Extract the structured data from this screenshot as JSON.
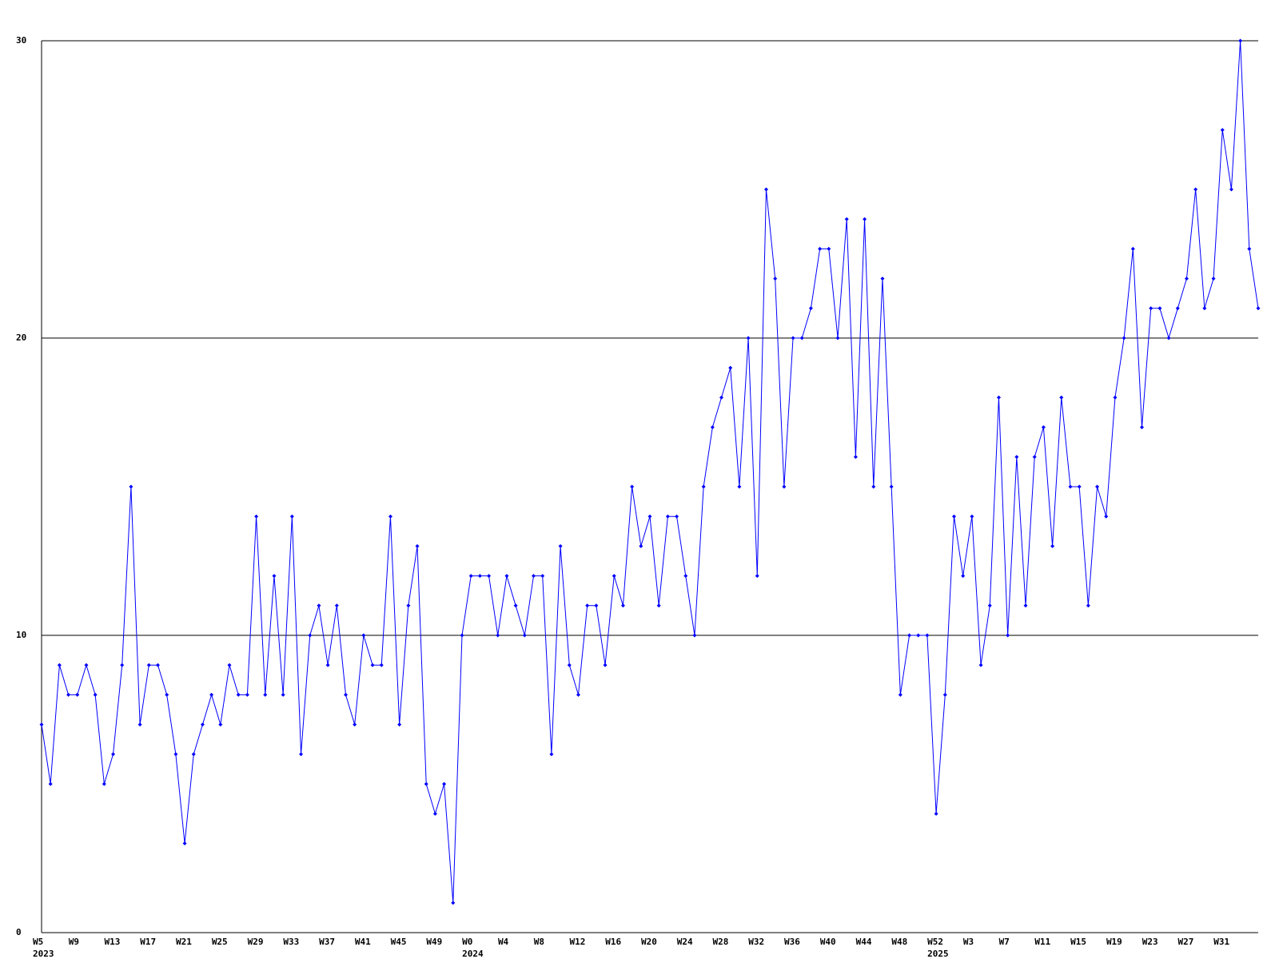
{
  "chart_data": {
    "type": "line",
    "color": "#0000ff",
    "categories": [
      "W5",
      null,
      null,
      null,
      "W9",
      null,
      null,
      null,
      "W13",
      null,
      null,
      null,
      "W17",
      null,
      null,
      null,
      "W21",
      null,
      null,
      null,
      "W25",
      null,
      null,
      null,
      "W29",
      null,
      null,
      null,
      "W33",
      null,
      null,
      null,
      "W37",
      null,
      null,
      null,
      "W41",
      null,
      null,
      null,
      "W45",
      null,
      null,
      null,
      "W49",
      null,
      null,
      null,
      "W0",
      null,
      null,
      null,
      "W4",
      null,
      null,
      null,
      "W8",
      null,
      null,
      null,
      "W12",
      null,
      null,
      null,
      "W16",
      null,
      null,
      null,
      "W20",
      null,
      null,
      null,
      "W24",
      null,
      null,
      null,
      "W28",
      null,
      null,
      null,
      "W32",
      null,
      null,
      null,
      "W36",
      null,
      null,
      null,
      "W40",
      null,
      null,
      null,
      "W44",
      null,
      null,
      null,
      "W48",
      null,
      null,
      null,
      "W52",
      null,
      null,
      null,
      "W3",
      null,
      null,
      null,
      "W7",
      null,
      null,
      null,
      "W11",
      null,
      null,
      null,
      "W15",
      null,
      null,
      null,
      "W19",
      null,
      null,
      null,
      "W23",
      null,
      null,
      null,
      "W27",
      null,
      null,
      null,
      "W31",
      null,
      null,
      null,
      null
    ],
    "years": [
      "2023",
      null,
      null,
      null,
      null,
      null,
      null,
      null,
      null,
      null,
      null,
      null,
      null,
      null,
      null,
      null,
      null,
      null,
      null,
      null,
      null,
      null,
      null,
      null,
      null,
      null,
      null,
      null,
      null,
      null,
      null,
      null,
      null,
      null,
      null,
      null,
      null,
      null,
      null,
      null,
      null,
      null,
      null,
      null,
      null,
      null,
      null,
      null,
      "2024",
      null,
      null,
      null,
      null,
      null,
      null,
      null,
      null,
      null,
      null,
      null,
      null,
      null,
      null,
      null,
      null,
      null,
      null,
      null,
      null,
      null,
      null,
      null,
      null,
      null,
      null,
      null,
      null,
      null,
      null,
      null,
      null,
      null,
      null,
      null,
      null,
      null,
      null,
      null,
      null,
      null,
      null,
      null,
      null,
      null,
      null,
      null,
      null,
      null,
      null,
      null,
      "2025",
      null,
      null,
      null,
      null,
      null,
      null,
      null,
      null,
      null,
      null,
      null,
      null,
      null,
      null,
      null,
      null,
      null,
      null,
      null,
      null,
      null,
      null,
      null,
      null,
      null,
      null,
      null,
      null,
      null,
      null,
      null,
      null,
      null,
      null,
      null
    ],
    "values": [
      7,
      5,
      9,
      8,
      8,
      9,
      8,
      5,
      6,
      9,
      15,
      7,
      9,
      9,
      8,
      6,
      3,
      6,
      7,
      8,
      7,
      9,
      8,
      8,
      14,
      8,
      12,
      8,
      14,
      6,
      10,
      11,
      9,
      11,
      8,
      7,
      10,
      9,
      9,
      14,
      7,
      11,
      13,
      5,
      4,
      5,
      1,
      10,
      12,
      12,
      12,
      10,
      12,
      11,
      10,
      12,
      12,
      6,
      13,
      9,
      8,
      11,
      11,
      9,
      12,
      11,
      15,
      13,
      14,
      11,
      14,
      14,
      12,
      10,
      15,
      17,
      18,
      19,
      15,
      20,
      12,
      25,
      22,
      15,
      20,
      20,
      21,
      23,
      23,
      20,
      24,
      16,
      24,
      15,
      22,
      15,
      8,
      10,
      10,
      10,
      4,
      8,
      14,
      12,
      14,
      9,
      11,
      18,
      10,
      16,
      11,
      16,
      17,
      13,
      18,
      15,
      15,
      11,
      15,
      14,
      18,
      20,
      23,
      17,
      21,
      21,
      20,
      21,
      22,
      25,
      21,
      22,
      27,
      25,
      30,
      23,
      21
    ],
    "ylim": [
      0,
      30
    ],
    "yticks": [
      0,
      10,
      20,
      30
    ],
    "grid": true
  }
}
